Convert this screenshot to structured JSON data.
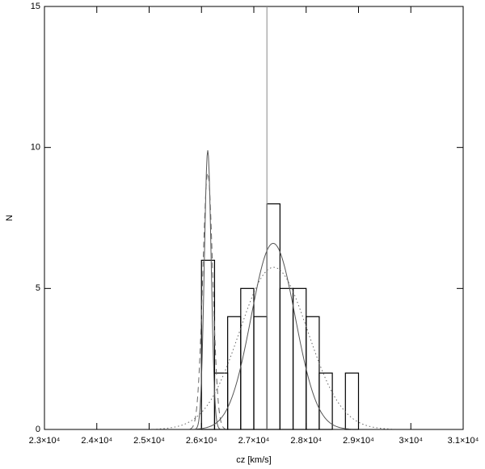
{
  "chart_data": {
    "type": "histogram",
    "xlabel": "cz [km/s]",
    "ylabel": "N",
    "bins": [
      26000,
      26250,
      26500,
      26750,
      27000,
      27250,
      27500,
      27750,
      28000,
      28250,
      28500,
      28750,
      29000
    ],
    "counts": [
      6,
      2,
      4,
      5,
      4,
      8,
      5,
      5,
      4,
      2,
      0,
      2
    ],
    "color": "#000000",
    "curves": [
      {
        "shape": "gaussian",
        "peak": 9.9,
        "mean": 26120,
        "sigma": 65,
        "dash": "solid",
        "color": "#555555"
      },
      {
        "shape": "gaussian",
        "peak": 9.1,
        "mean": 26120,
        "sigma": 95,
        "dash": "dashed",
        "color": "#666666"
      },
      {
        "shape": "gaussian",
        "peak": 6.6,
        "mean": 27370,
        "sigma": 420,
        "dash": "solid",
        "color": "#555555"
      },
      {
        "shape": "gaussian",
        "peak": 5.75,
        "mean": 27380,
        "sigma": 650,
        "dash": "dotted",
        "color": "#666666"
      }
    ],
    "vline": 27250,
    "vline_color": "#888888",
    "xlim": [
      23000,
      31000
    ],
    "xticks": [
      {
        "value": 23000,
        "label": "2.3×10⁴"
      },
      {
        "value": 24000,
        "label": "2.4×10⁴"
      },
      {
        "value": 25000,
        "label": "2.5×10⁴"
      },
      {
        "value": 26000,
        "label": "2.6×10⁴"
      },
      {
        "value": 27000,
        "label": "2.7×10⁴"
      },
      {
        "value": 28000,
        "label": "2.8×10⁴"
      },
      {
        "value": 29000,
        "label": "2.9×10⁴"
      },
      {
        "value": 30000,
        "label": "3×10⁴"
      },
      {
        "value": 31000,
        "label": "3.1×10⁴"
      }
    ],
    "ylim": [
      0,
      15
    ],
    "yticks": [
      0,
      5,
      10,
      15
    ]
  }
}
